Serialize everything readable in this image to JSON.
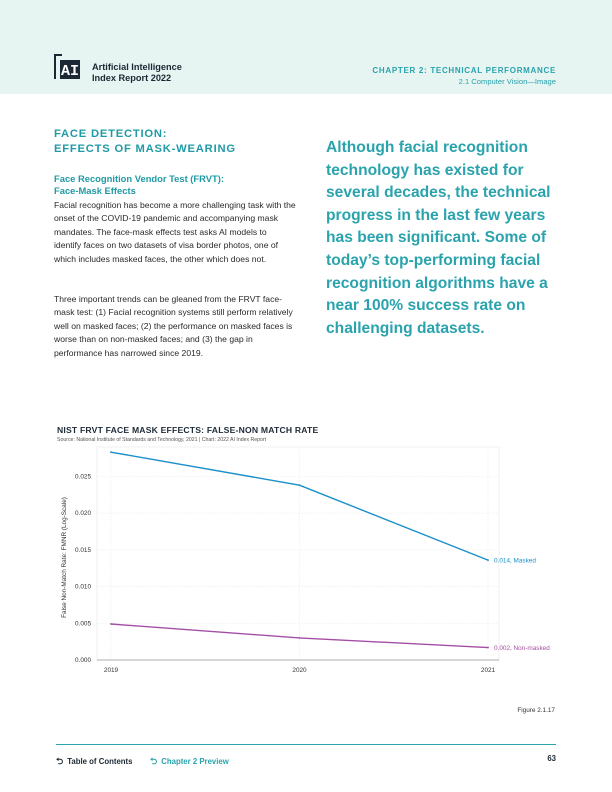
{
  "header": {
    "logo_text": "AI",
    "report_title_line1": "Artificial Intelligence",
    "report_title_line2": "Index Report 2022",
    "chapter_title": "CHAPTER 2: TECHNICAL PERFORMANCE",
    "chapter_subtitle": "2.1 Computer Vision—Image"
  },
  "section": {
    "title_line1": "FACE DETECTION:",
    "title_line2": "EFFECTS OF MASK-WEARING",
    "subtitle_line1": "Face Recognition Vendor Test (FRVT):",
    "subtitle_line2": "Face-Mask Effects",
    "paragraph1": "Facial recognition has become a more challenging task with the onset of the COVID-19 pandemic and accompanying mask mandates. The face-mask effects test asks AI models to identify faces on two datasets of visa border photos, one of which includes masked faces, the other which does not.",
    "paragraph2": "Three important trends can be gleaned from the FRVT face-mask test: (1) Facial recognition systems still perform relatively well on masked faces; (2) the performance on masked faces is worse than on non-masked faces; and (3) the gap in performance has narrowed since 2019."
  },
  "pull_quote": "Although facial recognition technology has existed for several decades, the technical progress in the last few years has been significant. Some of today’s top-performing facial recognition algorithms have a near 100% success rate on challenging datasets.",
  "chart_data": {
    "type": "line",
    "title": "NIST FRVT FACE MASK EFFECTS: FALSE-NON MATCH RATE",
    "source": "Source: National Institute of Standards and Technology, 2021 | Chart: 2022 AI Index Report",
    "xlabel": "",
    "ylabel": "False Non-Match Rate: FMNR (Log-Scale)",
    "x": [
      2019,
      2020,
      2021
    ],
    "x_ticks": [
      "2019",
      "2020",
      "2021"
    ],
    "y_ticks": [
      "0.000",
      "0.005",
      "0.010",
      "0.015",
      "0.020",
      "0.025"
    ],
    "ylim": [
      0,
      0.029
    ],
    "grid": true,
    "series": [
      {
        "name": "Masked",
        "values": [
          0.0283,
          0.0238,
          0.0136
        ],
        "color": "#1a8fc9",
        "end_label": "0.014, Masked"
      },
      {
        "name": "Non-masked",
        "values": [
          0.0049,
          0.003,
          0.0017
        ],
        "color": "#a34ea5",
        "end_label": "0.002, Non-masked"
      }
    ],
    "figure_label": "Figure 2.1.17"
  },
  "footer": {
    "toc": "Table of Contents",
    "chapter_preview": "Chapter 2 Preview",
    "page_number": "63"
  },
  "colors": {
    "accent": "#2aa3ad",
    "header_bg": "#e6f4f2"
  }
}
